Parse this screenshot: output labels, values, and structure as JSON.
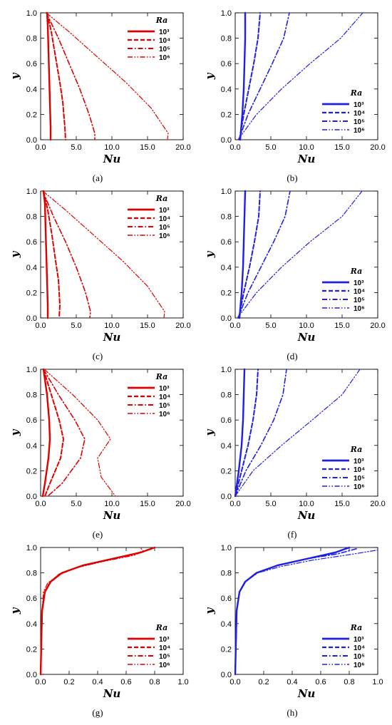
{
  "chart_data": [
    {
      "panel": "(a)",
      "type": "line",
      "color": "#e00000",
      "xlabel": "Nu",
      "ylabel": "y",
      "xlim": [
        0,
        20
      ],
      "ylim": [
        0,
        1
      ],
      "xticks": [
        "0.0",
        "5.0",
        "10.0",
        "15.0",
        "20.0"
      ],
      "yticks": [
        "0.0",
        "0.2",
        "0.4",
        "0.6",
        "0.8",
        "1.0"
      ],
      "legend": {
        "title": "Ra",
        "position": "top-right"
      },
      "series": [
        {
          "name": "10³",
          "dash": "solid",
          "x": [
            0.9,
            1.0,
            1.1,
            1.2,
            1.3,
            1.4,
            1.4
          ],
          "y": [
            1.0,
            0.9,
            0.7,
            0.5,
            0.3,
            0.1,
            0.0
          ]
        },
        {
          "name": "10⁴",
          "dash": "dash",
          "x": [
            0.9,
            1.5,
            2.1,
            2.7,
            3.1,
            3.4,
            3.5
          ],
          "y": [
            1.0,
            0.85,
            0.65,
            0.45,
            0.3,
            0.1,
            0.0
          ]
        },
        {
          "name": "10⁵",
          "dash": "dashdot",
          "x": [
            0.8,
            2.5,
            4.0,
            5.5,
            6.8,
            7.6,
            7.6
          ],
          "y": [
            1.0,
            0.8,
            0.6,
            0.4,
            0.2,
            0.05,
            0.0
          ]
        },
        {
          "name": "10⁶",
          "dash": "dashdotdot",
          "x": [
            0.8,
            4.0,
            8.0,
            12.0,
            15.5,
            17.9,
            17.8
          ],
          "y": [
            1.0,
            0.85,
            0.65,
            0.45,
            0.25,
            0.05,
            0.0
          ]
        }
      ]
    },
    {
      "panel": "(b)",
      "type": "line",
      "color": "#1f1fe6",
      "xlabel": "Nu",
      "ylabel": "y",
      "xlim": [
        0,
        20
      ],
      "ylim": [
        0,
        1
      ],
      "xticks": [
        "0.0",
        "5.0",
        "10.0",
        "15.0",
        "20.0"
      ],
      "yticks": [
        "0.0",
        "0.2",
        "0.4",
        "0.6",
        "0.8",
        "1.0"
      ],
      "legend": {
        "title": "Ra",
        "position": "bottom-right"
      },
      "series": [
        {
          "name": "10³",
          "dash": "solid",
          "x": [
            0.7,
            1.0,
            1.2,
            1.3,
            1.4,
            1.4
          ],
          "y": [
            0.0,
            0.2,
            0.4,
            0.6,
            0.8,
            1.0
          ]
        },
        {
          "name": "10⁴",
          "dash": "dash",
          "x": [
            0.6,
            1.2,
            1.9,
            2.6,
            3.2,
            3.5
          ],
          "y": [
            0.0,
            0.2,
            0.4,
            0.6,
            0.8,
            1.0
          ]
        },
        {
          "name": "10⁵",
          "dash": "dashdot",
          "x": [
            0.5,
            1.8,
            3.5,
            5.2,
            6.8,
            7.6
          ],
          "y": [
            0.0,
            0.2,
            0.4,
            0.6,
            0.8,
            1.0
          ]
        },
        {
          "name": "10⁶",
          "dash": "dashdotdot",
          "x": [
            0.4,
            3.0,
            6.5,
            10.5,
            14.8,
            17.9
          ],
          "y": [
            0.0,
            0.2,
            0.4,
            0.6,
            0.8,
            1.0
          ]
        }
      ]
    },
    {
      "panel": "(c)",
      "type": "line",
      "color": "#e00000",
      "xlabel": "Nu",
      "ylabel": "y",
      "xlim": [
        0,
        20
      ],
      "ylim": [
        0,
        1
      ],
      "xticks": [
        "0.0",
        "5.0",
        "10.0",
        "15.0",
        "20.0"
      ],
      "yticks": [
        "0.0",
        "0.2",
        "0.4",
        "0.6",
        "0.8",
        "1.0"
      ],
      "legend": {
        "title": "Ra",
        "position": "top-right"
      },
      "series": [
        {
          "name": "10³",
          "dash": "solid",
          "x": [
            0.4,
            0.6,
            0.7,
            0.8,
            0.9,
            1.0,
            1.0
          ],
          "y": [
            1.0,
            0.9,
            0.7,
            0.5,
            0.3,
            0.1,
            0.0
          ]
        },
        {
          "name": "10⁴",
          "dash": "dash",
          "x": [
            0.4,
            1.0,
            1.6,
            2.1,
            2.5,
            2.7,
            2.6
          ],
          "y": [
            1.0,
            0.85,
            0.65,
            0.45,
            0.3,
            0.1,
            0.0
          ]
        },
        {
          "name": "10⁵",
          "dash": "dashdot",
          "x": [
            0.3,
            1.8,
            3.5,
            5.0,
            6.3,
            7.0,
            6.9
          ],
          "y": [
            1.0,
            0.8,
            0.6,
            0.4,
            0.2,
            0.05,
            0.0
          ]
        },
        {
          "name": "10⁶",
          "dash": "dashdotdot",
          "x": [
            0.3,
            3.5,
            7.5,
            11.5,
            15.0,
            17.4,
            17.3
          ],
          "y": [
            1.0,
            0.85,
            0.65,
            0.45,
            0.25,
            0.05,
            0.0
          ]
        }
      ]
    },
    {
      "panel": "(d)",
      "type": "line",
      "color": "#1f1fe6",
      "xlabel": "Nu",
      "ylabel": "y",
      "xlim": [
        0,
        20
      ],
      "ylim": [
        0,
        1
      ],
      "xticks": [
        "0.0",
        "5.0",
        "10.0",
        "15.0",
        "20.0"
      ],
      "yticks": [
        "0.0",
        "0.2",
        "0.4",
        "0.6",
        "0.8",
        "1.0"
      ],
      "legend": {
        "title": "Ra",
        "position": "bottom-right"
      },
      "series": [
        {
          "name": "10³",
          "dash": "solid",
          "x": [
            0.6,
            0.9,
            1.1,
            1.2,
            1.3,
            1.4
          ],
          "y": [
            0.0,
            0.2,
            0.4,
            0.6,
            0.8,
            1.0
          ]
        },
        {
          "name": "10⁴",
          "dash": "dash",
          "x": [
            0.5,
            1.2,
            2.0,
            2.7,
            3.3,
            3.5
          ],
          "y": [
            0.0,
            0.2,
            0.4,
            0.6,
            0.8,
            1.0
          ]
        },
        {
          "name": "10⁵",
          "dash": "dashdot",
          "x": [
            0.4,
            1.8,
            3.6,
            5.4,
            7.0,
            7.7
          ],
          "y": [
            0.0,
            0.2,
            0.4,
            0.6,
            0.8,
            1.0
          ]
        },
        {
          "name": "10⁶",
          "dash": "dashdotdot",
          "x": [
            0.3,
            3.0,
            6.5,
            10.5,
            15.0,
            17.8
          ],
          "y": [
            0.0,
            0.2,
            0.4,
            0.6,
            0.8,
            1.0
          ]
        }
      ]
    },
    {
      "panel": "(e)",
      "type": "line",
      "color": "#e00000",
      "xlabel": "Nu",
      "ylabel": "y",
      "xlim": [
        0,
        20
      ],
      "ylim": [
        0,
        1
      ],
      "xticks": [
        "0.0",
        "5.0",
        "10.0",
        "15.0",
        "20.0"
      ],
      "yticks": [
        "0.0",
        "0.2",
        "0.4",
        "0.6",
        "0.8",
        "1.0"
      ],
      "legend": {
        "title": "Ra",
        "position": "top-right"
      },
      "series": [
        {
          "name": "10³",
          "dash": "solid",
          "x": [
            0.4,
            0.9,
            1.2,
            1.3,
            1.1,
            0.6,
            0.3
          ],
          "y": [
            1.0,
            0.8,
            0.6,
            0.45,
            0.3,
            0.1,
            0.0
          ]
        },
        {
          "name": "10⁴",
          "dash": "dash",
          "x": [
            0.4,
            1.5,
            2.6,
            3.2,
            2.8,
            1.3,
            0.6
          ],
          "y": [
            1.0,
            0.8,
            0.6,
            0.45,
            0.3,
            0.1,
            0.0
          ]
        },
        {
          "name": "10⁵",
          "dash": "dashdot",
          "x": [
            0.4,
            2.5,
            4.8,
            6.2,
            5.6,
            3.0,
            1.0
          ],
          "y": [
            1.0,
            0.8,
            0.6,
            0.45,
            0.3,
            0.1,
            0.0
          ]
        },
        {
          "name": "10⁶",
          "dash": "dashdotdot",
          "x": [
            0.5,
            4.5,
            8.0,
            9.8,
            8.0,
            8.5,
            10.5
          ],
          "y": [
            1.0,
            0.8,
            0.6,
            0.45,
            0.3,
            0.15,
            0.0
          ]
        }
      ]
    },
    {
      "panel": "(f)",
      "type": "line",
      "color": "#1f1fe6",
      "xlabel": "Nu",
      "ylabel": "y",
      "xlim": [
        0,
        20
      ],
      "ylim": [
        0,
        1
      ],
      "xticks": [
        "0.0",
        "5.0",
        "10.0",
        "15.0",
        "20.0"
      ],
      "yticks": [
        "0.0",
        "0.2",
        "0.4",
        "0.6",
        "0.8",
        "1.0"
      ],
      "legend": {
        "title": "Ra",
        "position": "bottom-right"
      },
      "series": [
        {
          "name": "10³",
          "dash": "solid",
          "x": [
            0.0,
            0.5,
            0.9,
            1.1,
            1.2,
            1.3
          ],
          "y": [
            0.0,
            0.2,
            0.4,
            0.6,
            0.8,
            1.0
          ]
        },
        {
          "name": "10⁴",
          "dash": "dash",
          "x": [
            0.0,
            0.9,
            1.8,
            2.5,
            3.0,
            3.2
          ],
          "y": [
            0.0,
            0.2,
            0.4,
            0.6,
            0.8,
            1.0
          ]
        },
        {
          "name": "10⁵",
          "dash": "dashdot",
          "x": [
            0.0,
            1.5,
            3.6,
            5.4,
            6.7,
            7.2
          ],
          "y": [
            0.0,
            0.2,
            0.4,
            0.6,
            0.8,
            1.0
          ]
        },
        {
          "name": "10⁶",
          "dash": "dashdotdot",
          "x": [
            0.0,
            2.5,
            6.5,
            10.8,
            15.0,
            17.5
          ],
          "y": [
            0.0,
            0.2,
            0.4,
            0.6,
            0.8,
            1.0
          ]
        }
      ]
    },
    {
      "panel": "(g)",
      "type": "line",
      "color": "#e00000",
      "xlabel": "Nu",
      "ylabel": "y",
      "xlim": [
        0,
        1
      ],
      "ylim": [
        0,
        1
      ],
      "xticks": [
        "0.0",
        "0.2",
        "0.4",
        "0.6",
        "0.8",
        "1.0"
      ],
      "yticks": [
        "0.0",
        "0.2",
        "0.4",
        "0.6",
        "0.8",
        "1.0"
      ],
      "legend": {
        "title": "Ra",
        "position": "bottom-right"
      },
      "series": [
        {
          "name": "10³",
          "dash": "solid",
          "x": [
            0.0,
            0.01,
            0.03,
            0.07,
            0.15,
            0.3,
            0.5,
            0.7,
            0.8
          ],
          "y": [
            0.0,
            0.5,
            0.65,
            0.73,
            0.8,
            0.86,
            0.91,
            0.96,
            1.0
          ]
        },
        {
          "name": "10⁴",
          "dash": "dash",
          "x": [
            0.0,
            0.01,
            0.03,
            0.07,
            0.15,
            0.3,
            0.5,
            0.7,
            0.8
          ],
          "y": [
            0.0,
            0.5,
            0.65,
            0.73,
            0.8,
            0.86,
            0.91,
            0.96,
            1.0
          ]
        },
        {
          "name": "10⁵",
          "dash": "dashdot",
          "x": [
            0.0,
            0.01,
            0.03,
            0.06,
            0.13,
            0.27,
            0.46,
            0.66,
            0.8
          ],
          "y": [
            0.0,
            0.5,
            0.65,
            0.72,
            0.79,
            0.85,
            0.9,
            0.95,
            1.0
          ]
        },
        {
          "name": "10⁶",
          "dash": "dashdotdot",
          "x": [
            0.0,
            0.01,
            0.02,
            0.05,
            0.12,
            0.25,
            0.44,
            0.66,
            0.72,
            0.7
          ],
          "y": [
            0.0,
            0.5,
            0.65,
            0.72,
            0.78,
            0.84,
            0.89,
            0.94,
            0.97,
            1.0
          ]
        }
      ]
    },
    {
      "panel": "(h)",
      "type": "line",
      "color": "#1f1fe6",
      "xlabel": "Nu",
      "ylabel": "y",
      "xlim": [
        0,
        1
      ],
      "ylim": [
        0,
        1
      ],
      "xticks": [
        "0.0",
        "0.2",
        "0.4",
        "0.6",
        "0.8",
        "1.0"
      ],
      "yticks": [
        "0.0",
        "0.2",
        "0.4",
        "0.6",
        "0.8",
        "1.0"
      ],
      "legend": {
        "title": "Ra",
        "position": "bottom-right"
      },
      "series": [
        {
          "name": "10³",
          "dash": "solid",
          "x": [
            0.0,
            0.01,
            0.03,
            0.07,
            0.15,
            0.3,
            0.5,
            0.7,
            0.8
          ],
          "y": [
            0.0,
            0.5,
            0.65,
            0.73,
            0.8,
            0.86,
            0.91,
            0.96,
            1.0
          ]
        },
        {
          "name": "10⁴",
          "dash": "dash",
          "x": [
            0.0,
            0.01,
            0.03,
            0.07,
            0.15,
            0.3,
            0.5,
            0.7,
            0.8
          ],
          "y": [
            0.0,
            0.5,
            0.65,
            0.73,
            0.8,
            0.86,
            0.91,
            0.96,
            1.0
          ]
        },
        {
          "name": "10⁵",
          "dash": "dashdot",
          "x": [
            0.0,
            0.01,
            0.03,
            0.07,
            0.15,
            0.3,
            0.5,
            0.72,
            0.85
          ],
          "y": [
            0.0,
            0.5,
            0.65,
            0.73,
            0.8,
            0.86,
            0.91,
            0.95,
            0.99
          ]
        },
        {
          "name": "10⁶",
          "dash": "dashdotdot",
          "x": [
            0.0,
            0.01,
            0.03,
            0.07,
            0.16,
            0.32,
            0.54,
            0.78,
            1.0
          ],
          "y": [
            0.0,
            0.5,
            0.65,
            0.73,
            0.8,
            0.85,
            0.9,
            0.94,
            0.98
          ]
        }
      ]
    }
  ]
}
